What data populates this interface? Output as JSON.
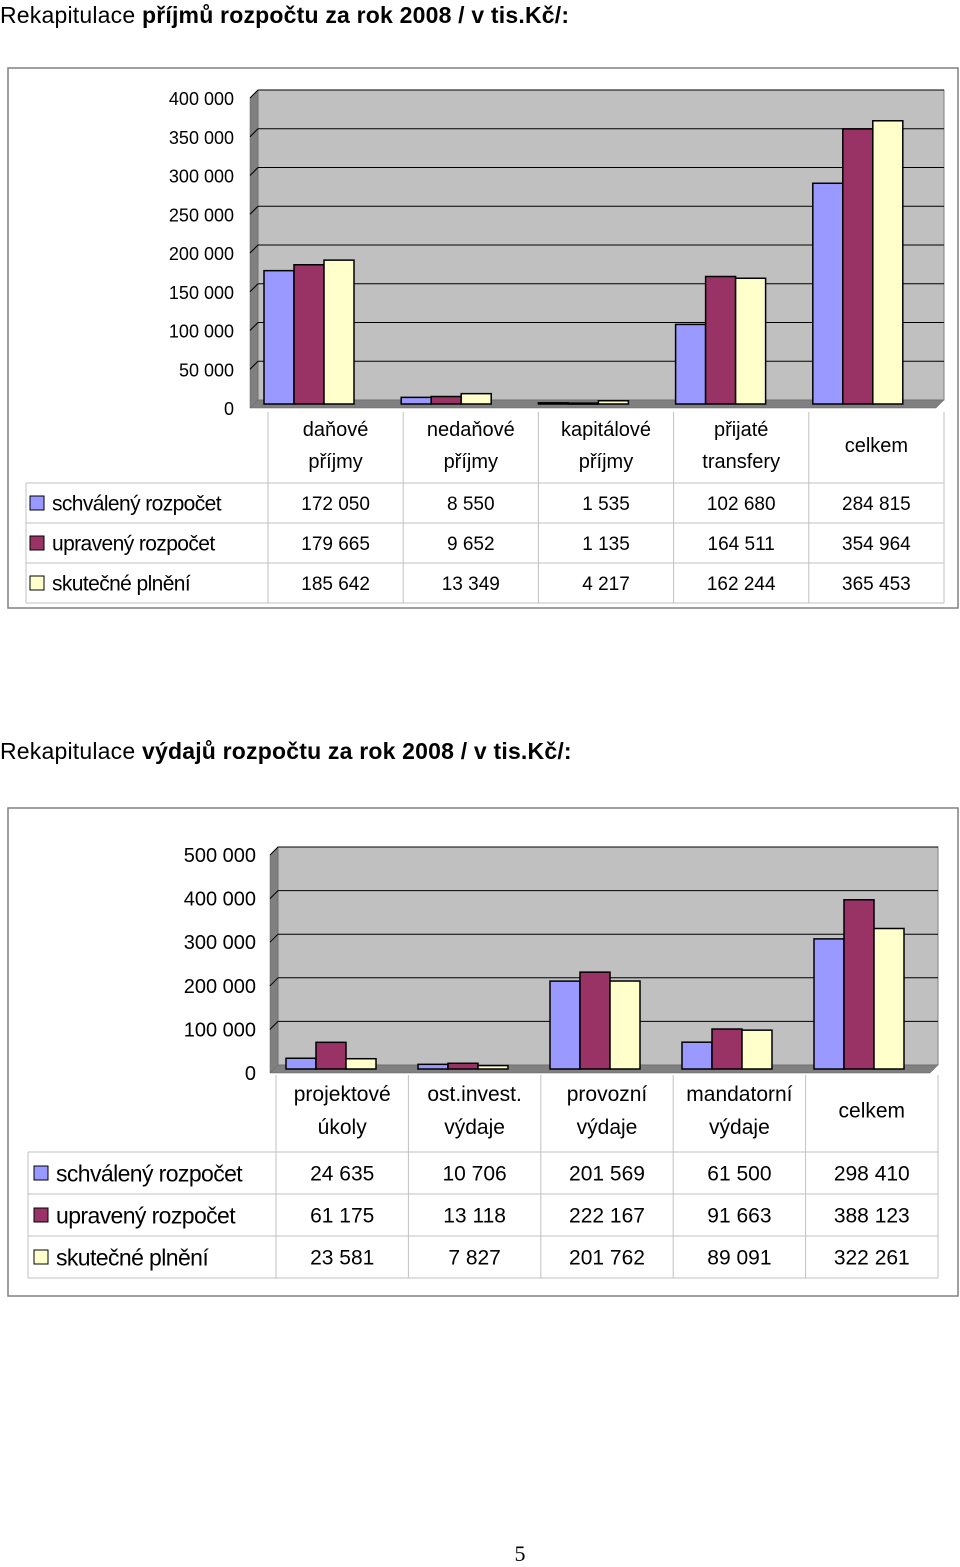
{
  "page_number": "5",
  "colors": {
    "schvaleny": "#9999ff",
    "upraveny": "#993366",
    "skutecne": "#ffffcc",
    "plot_bg": "#c0c0c0",
    "grid": "#000000"
  },
  "chart_data": [
    {
      "type": "bar",
      "title_prefix": "Rekapitulace ",
      "title": "příjmů rozpočtu za rok 2008 / v tis.Kč/:",
      "categories": [
        [
          "daňové",
          "příjmy"
        ],
        [
          "nedaňové",
          "příjmy"
        ],
        [
          "kapitálové",
          "příjmy"
        ],
        [
          "přijaté",
          "transfery"
        ],
        [
          "celkem"
        ]
      ],
      "ylim": [
        0,
        400000
      ],
      "yticks": [
        "0",
        "50 000",
        "100 000",
        "150 000",
        "200 000",
        "250 000",
        "300 000",
        "350 000",
        "400 000"
      ],
      "grid": true,
      "legend": "data-table",
      "series": [
        {
          "name": "schválený rozpočet",
          "values": [
            172050,
            8550,
            1535,
            102680,
            284815
          ],
          "labels": [
            "172 050",
            "8 550",
            "1 535",
            "102 680",
            "284 815"
          ]
        },
        {
          "name": "upravený rozpočet",
          "values": [
            179665,
            9652,
            1135,
            164511,
            354964
          ],
          "labels": [
            "179 665",
            "9 652",
            "1 135",
            "164 511",
            "354 964"
          ]
        },
        {
          "name": "skutečné plnění",
          "values": [
            185642,
            13349,
            4217,
            162244,
            365453
          ],
          "labels": [
            "185 642",
            "13 349",
            "4 217",
            "162 244",
            "365 453"
          ]
        }
      ]
    },
    {
      "type": "bar",
      "title_prefix": "Rekapitulace ",
      "title": "výdajů rozpočtu za rok 2008 / v tis.Kč/:",
      "categories": [
        [
          "projektové",
          "úkoly"
        ],
        [
          "ost.invest.",
          "výdaje"
        ],
        [
          "provozní",
          "výdaje"
        ],
        [
          "mandatorní",
          "výdaje"
        ],
        [
          "celkem"
        ]
      ],
      "ylim": [
        0,
        500000
      ],
      "yticks": [
        "0",
        "100 000",
        "200 000",
        "300 000",
        "400 000",
        "500 000"
      ],
      "grid": true,
      "legend": "data-table",
      "series": [
        {
          "name": "schválený rozpočet",
          "values": [
            24635,
            10706,
            201569,
            61500,
            298410
          ],
          "labels": [
            "24 635",
            "10 706",
            "201 569",
            "61 500",
            "298 410"
          ]
        },
        {
          "name": "upravený rozpočet",
          "values": [
            61175,
            13118,
            222167,
            91663,
            388123
          ],
          "labels": [
            "61 175",
            "13 118",
            "222 167",
            "91 663",
            "388 123"
          ]
        },
        {
          "name": "skutečné plnění",
          "values": [
            23581,
            7827,
            201762,
            89091,
            322261
          ],
          "labels": [
            "23 581",
            "7 827",
            "201 762",
            "89 091",
            "322 261"
          ]
        }
      ]
    }
  ]
}
